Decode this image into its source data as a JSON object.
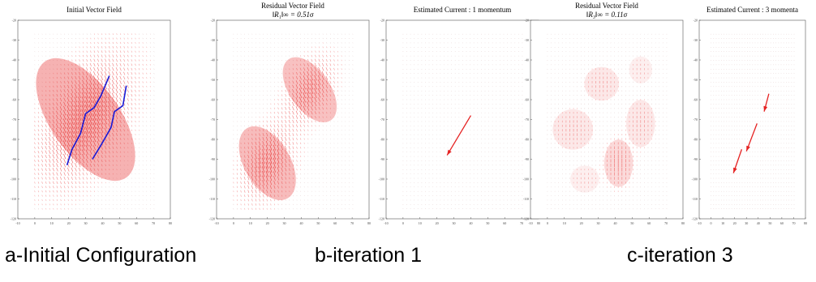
{
  "figure": {
    "captions": [
      "a-Initial Configuration",
      "b-iteration 1",
      "c-iteration 3"
    ],
    "colors": {
      "field": "#e52222",
      "path": "#1a1ad6",
      "frame": "#555555"
    }
  },
  "chart_data": [
    {
      "type": "vector-field",
      "title": "Initial Vector Field",
      "xlim": [
        -10,
        80
      ],
      "ylim": [
        -120,
        -20
      ],
      "xticks": [
        -10,
        0,
        10,
        20,
        30,
        40,
        50,
        60,
        70,
        80
      ],
      "yticks": [
        -20,
        -30,
        -40,
        -50,
        -60,
        -70,
        -80,
        -90,
        -100,
        -110,
        -120
      ],
      "tick_labels_x": [
        "-10",
        "0",
        "10",
        "20",
        "30",
        "40",
        "50",
        "60",
        "70",
        "80"
      ],
      "tick_labels_y": [
        "-20",
        "-30",
        "-40",
        "-50",
        "-60",
        "-70",
        "-80",
        "-90",
        "-100",
        "-110",
        "-120"
      ],
      "blobs": [
        {
          "cx": 30,
          "cy": -70,
          "rx": 24,
          "ry": 42,
          "angle": -35,
          "strength": 1.0
        }
      ],
      "paths": [
        [
          [
            19,
            -93
          ],
          [
            22,
            -85
          ],
          [
            27,
            -77
          ],
          [
            30,
            -67
          ],
          [
            35,
            -64
          ],
          [
            39,
            -58
          ],
          [
            44,
            -48
          ]
        ],
        [
          [
            34,
            -90
          ],
          [
            39,
            -83
          ],
          [
            45,
            -74
          ],
          [
            47,
            -66
          ],
          [
            52,
            -63
          ],
          [
            54,
            -53
          ]
        ]
      ],
      "arrows": []
    },
    {
      "type": "vector-field",
      "title": "Residual Vector Field",
      "subtitle": "‖R₁‖∞ = 0.51σ",
      "xlim": [
        -10,
        80
      ],
      "ylim": [
        -120,
        -20
      ],
      "xticks": [
        -10,
        0,
        10,
        20,
        30,
        40,
        50,
        60,
        70,
        80
      ],
      "yticks": [
        -20,
        -30,
        -40,
        -50,
        -60,
        -70,
        -80,
        -90,
        -100,
        -110,
        -120
      ],
      "tick_labels_x": [
        "-10",
        "0",
        "10",
        "20",
        "30",
        "40",
        "50",
        "60",
        "70",
        "80"
      ],
      "tick_labels_y": [
        "-20",
        "-30",
        "-40",
        "-50",
        "-60",
        "-70",
        "-80",
        "-90",
        "-100",
        "-110",
        "-120"
      ],
      "blobs": [
        {
          "cx": 45,
          "cy": -55,
          "rx": 14,
          "ry": 22,
          "angle": -35,
          "strength": 0.8
        },
        {
          "cx": 20,
          "cy": -92,
          "rx": 16,
          "ry": 24,
          "angle": -30,
          "strength": 0.85
        }
      ],
      "paths": [],
      "arrows": []
    },
    {
      "type": "vector-field",
      "title": "Estimated Current : 1 momentum",
      "xlim": [
        -10,
        80
      ],
      "ylim": [
        -120,
        -20
      ],
      "xticks": [
        -10,
        0,
        10,
        20,
        30,
        40,
        50,
        60,
        70,
        80
      ],
      "yticks": [
        -20,
        -30,
        -40,
        -50,
        -60,
        -70,
        -80,
        -90,
        -100,
        -110,
        -120
      ],
      "tick_labels_x": [
        "-10",
        "0",
        "10",
        "20",
        "30",
        "40",
        "50",
        "60",
        "70",
        "80"
      ],
      "tick_labels_y": [
        "-20",
        "-30",
        "-40",
        "-50",
        "-60",
        "-70",
        "-80",
        "-90",
        "-100",
        "-110",
        "-120"
      ],
      "blobs": [],
      "paths": [],
      "arrows": [
        [
          [
            40,
            -68
          ],
          [
            26,
            -88
          ]
        ]
      ]
    },
    {
      "type": "vector-field",
      "title": "Residual Vector Field",
      "subtitle": "‖R₃‖∞ = 0.11σ",
      "xlim": [
        -10,
        80
      ],
      "ylim": [
        -120,
        -20
      ],
      "xticks": [
        -10,
        0,
        10,
        20,
        30,
        40,
        50,
        60,
        70,
        80
      ],
      "yticks": [
        -20,
        -30,
        -40,
        -50,
        -60,
        -70,
        -80,
        -90,
        -100,
        -110,
        -120
      ],
      "tick_labels_x": [
        "-10",
        "0",
        "10",
        "20",
        "30",
        "40",
        "50",
        "60",
        "70",
        "80"
      ],
      "tick_labels_y": [
        "-20",
        "-30",
        "-40",
        "-50",
        "-60",
        "-70",
        "-80",
        "-90",
        "-100",
        "-110",
        "-120"
      ],
      "blobs": [
        {
          "cx": 42,
          "cy": -92,
          "rx": 10,
          "ry": 14,
          "angle": 0,
          "strength": 0.5
        },
        {
          "cx": 15,
          "cy": -75,
          "rx": 14,
          "ry": 12,
          "angle": 0,
          "strength": 0.3
        },
        {
          "cx": 32,
          "cy": -52,
          "rx": 12,
          "ry": 10,
          "angle": 0,
          "strength": 0.28
        },
        {
          "cx": 55,
          "cy": -72,
          "rx": 10,
          "ry": 14,
          "angle": 0,
          "strength": 0.3
        },
        {
          "cx": 55,
          "cy": -45,
          "rx": 8,
          "ry": 8,
          "angle": 0,
          "strength": 0.2
        },
        {
          "cx": 22,
          "cy": -100,
          "rx": 10,
          "ry": 8,
          "angle": 0,
          "strength": 0.2
        }
      ],
      "paths": [],
      "arrows": []
    },
    {
      "type": "vector-field",
      "title": "Estimated Current : 3 momenta",
      "xlim": [
        -10,
        80
      ],
      "ylim": [
        -120,
        -20
      ],
      "xticks": [
        -10,
        0,
        10,
        20,
        30,
        40,
        50,
        60,
        70,
        80
      ],
      "yticks": [
        -20,
        -30,
        -40,
        -50,
        -60,
        -70,
        -80,
        -90,
        -100,
        -110,
        -120
      ],
      "tick_labels_x": [
        "-10",
        "0",
        "10",
        "20",
        "30",
        "40",
        "50",
        "60",
        "70",
        "80"
      ],
      "tick_labels_y": [
        "-20",
        "-30",
        "-40",
        "-50",
        "-60",
        "-70",
        "-80",
        "-90",
        "-100",
        "-110",
        "-120"
      ],
      "blobs": [],
      "paths": [],
      "arrows": [
        [
          [
            49,
            -57
          ],
          [
            45,
            -66
          ]
        ],
        [
          [
            39,
            -72
          ],
          [
            30,
            -86
          ]
        ],
        [
          [
            26,
            -85
          ],
          [
            19,
            -97
          ]
        ]
      ]
    }
  ]
}
